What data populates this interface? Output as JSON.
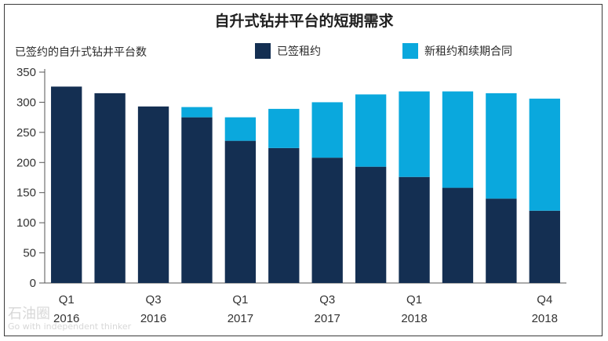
{
  "chart_data": {
    "type": "bar",
    "stacked": true,
    "title": "自升式钻井平台的短期需求",
    "ylabel": "已签约的自升式钻井平台数",
    "xlabel": "",
    "ylim": [
      0,
      350
    ],
    "yticks": [
      0,
      50,
      100,
      150,
      200,
      250,
      300,
      350
    ],
    "grid": false,
    "legend_position": "top",
    "categories": [
      "Q1 2016",
      "Q2 2016",
      "Q3 2016",
      "Q4 2016",
      "Q1 2017",
      "Q2 2017",
      "Q3 2017",
      "Q4 2017",
      "Q1 2018",
      "Q2 2018",
      "Q3 2018",
      "Q4 2018"
    ],
    "tick_labels": [
      {
        "index": 0,
        "line1": "Q1",
        "line2": "2016"
      },
      {
        "index": 2,
        "line1": "Q3",
        "line2": "2016"
      },
      {
        "index": 4,
        "line1": "Q1",
        "line2": "2017"
      },
      {
        "index": 6,
        "line1": "Q3",
        "line2": "2017"
      },
      {
        "index": 8,
        "line1": "Q1",
        "line2": "2018"
      },
      {
        "index": 11,
        "line1": "Q4",
        "line2": "2018"
      }
    ],
    "series": [
      {
        "name": "已签租约",
        "color": "#142f52",
        "values": [
          326,
          315,
          293,
          275,
          236,
          224,
          208,
          193,
          176,
          158,
          140,
          120
        ]
      },
      {
        "name": "新租约和续期合同",
        "color": "#0aa8dd",
        "values": [
          0,
          0,
          0,
          17,
          39,
          65,
          92,
          120,
          142,
          160,
          175,
          186
        ]
      }
    ]
  },
  "watermark": {
    "name": "石油圈",
    "sub": "Go with independent thinker"
  }
}
